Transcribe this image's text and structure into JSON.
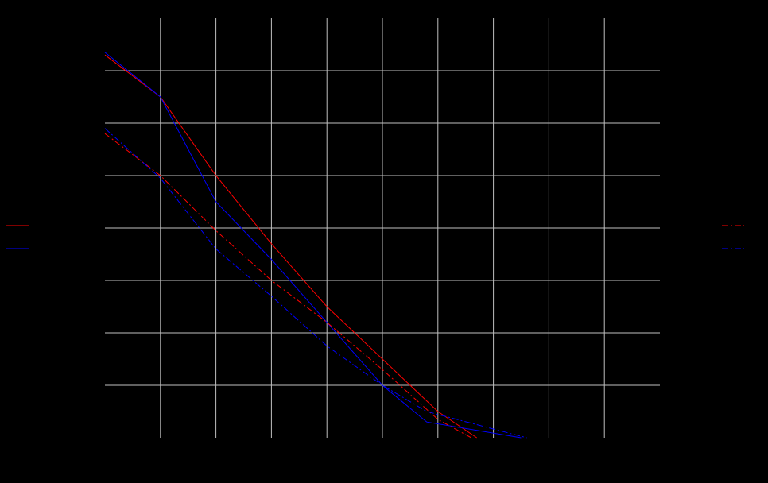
{
  "chart_data": {
    "type": "line",
    "title": "",
    "xlabel": "",
    "ylabel": "",
    "xlim": [
      0,
      10
    ],
    "ylim": [
      0,
      8
    ],
    "grid": true,
    "x_gridlines": [
      1,
      2,
      3,
      4,
      5,
      6,
      7,
      8,
      9
    ],
    "y_gridlines": [
      1,
      2,
      3,
      4,
      5,
      6,
      7
    ],
    "legend_left": "middle-left",
    "legend_right": "middle-right",
    "series": [
      {
        "color": "#ff0000",
        "dash": "solid",
        "axis": "left",
        "points": [
          [
            0,
            7.3
          ],
          [
            1,
            6.5
          ],
          [
            2,
            5.0
          ],
          [
            3,
            3.7
          ],
          [
            4,
            2.5
          ],
          [
            5,
            1.5
          ],
          [
            6,
            0.5
          ],
          [
            6.7,
            0.0
          ]
        ]
      },
      {
        "color": "#0000ff",
        "dash": "solid",
        "axis": "left",
        "points": [
          [
            0,
            7.35
          ],
          [
            1,
            6.5
          ],
          [
            2,
            4.5
          ],
          [
            3,
            3.4
          ],
          [
            4,
            2.2
          ],
          [
            5,
            1.0
          ],
          [
            5.8,
            0.3
          ],
          [
            7.5,
            0.0
          ]
        ]
      },
      {
        "color": "#ff0000",
        "dash": "dashed",
        "axis": "right",
        "points": [
          [
            0,
            5.8
          ],
          [
            1,
            5.0
          ],
          [
            2,
            3.95
          ],
          [
            3,
            3.0
          ],
          [
            4,
            2.2
          ],
          [
            5,
            1.3
          ],
          [
            6,
            0.35
          ],
          [
            6.6,
            0.0
          ]
        ]
      },
      {
        "color": "#0000ff",
        "dash": "dashed",
        "axis": "right",
        "points": [
          [
            0,
            5.9
          ],
          [
            1,
            4.95
          ],
          [
            2,
            3.6
          ],
          [
            3,
            2.7
          ],
          [
            4,
            1.75
          ],
          [
            5,
            1.0
          ],
          [
            5.8,
            0.5
          ],
          [
            7.6,
            0.0
          ]
        ]
      }
    ]
  }
}
